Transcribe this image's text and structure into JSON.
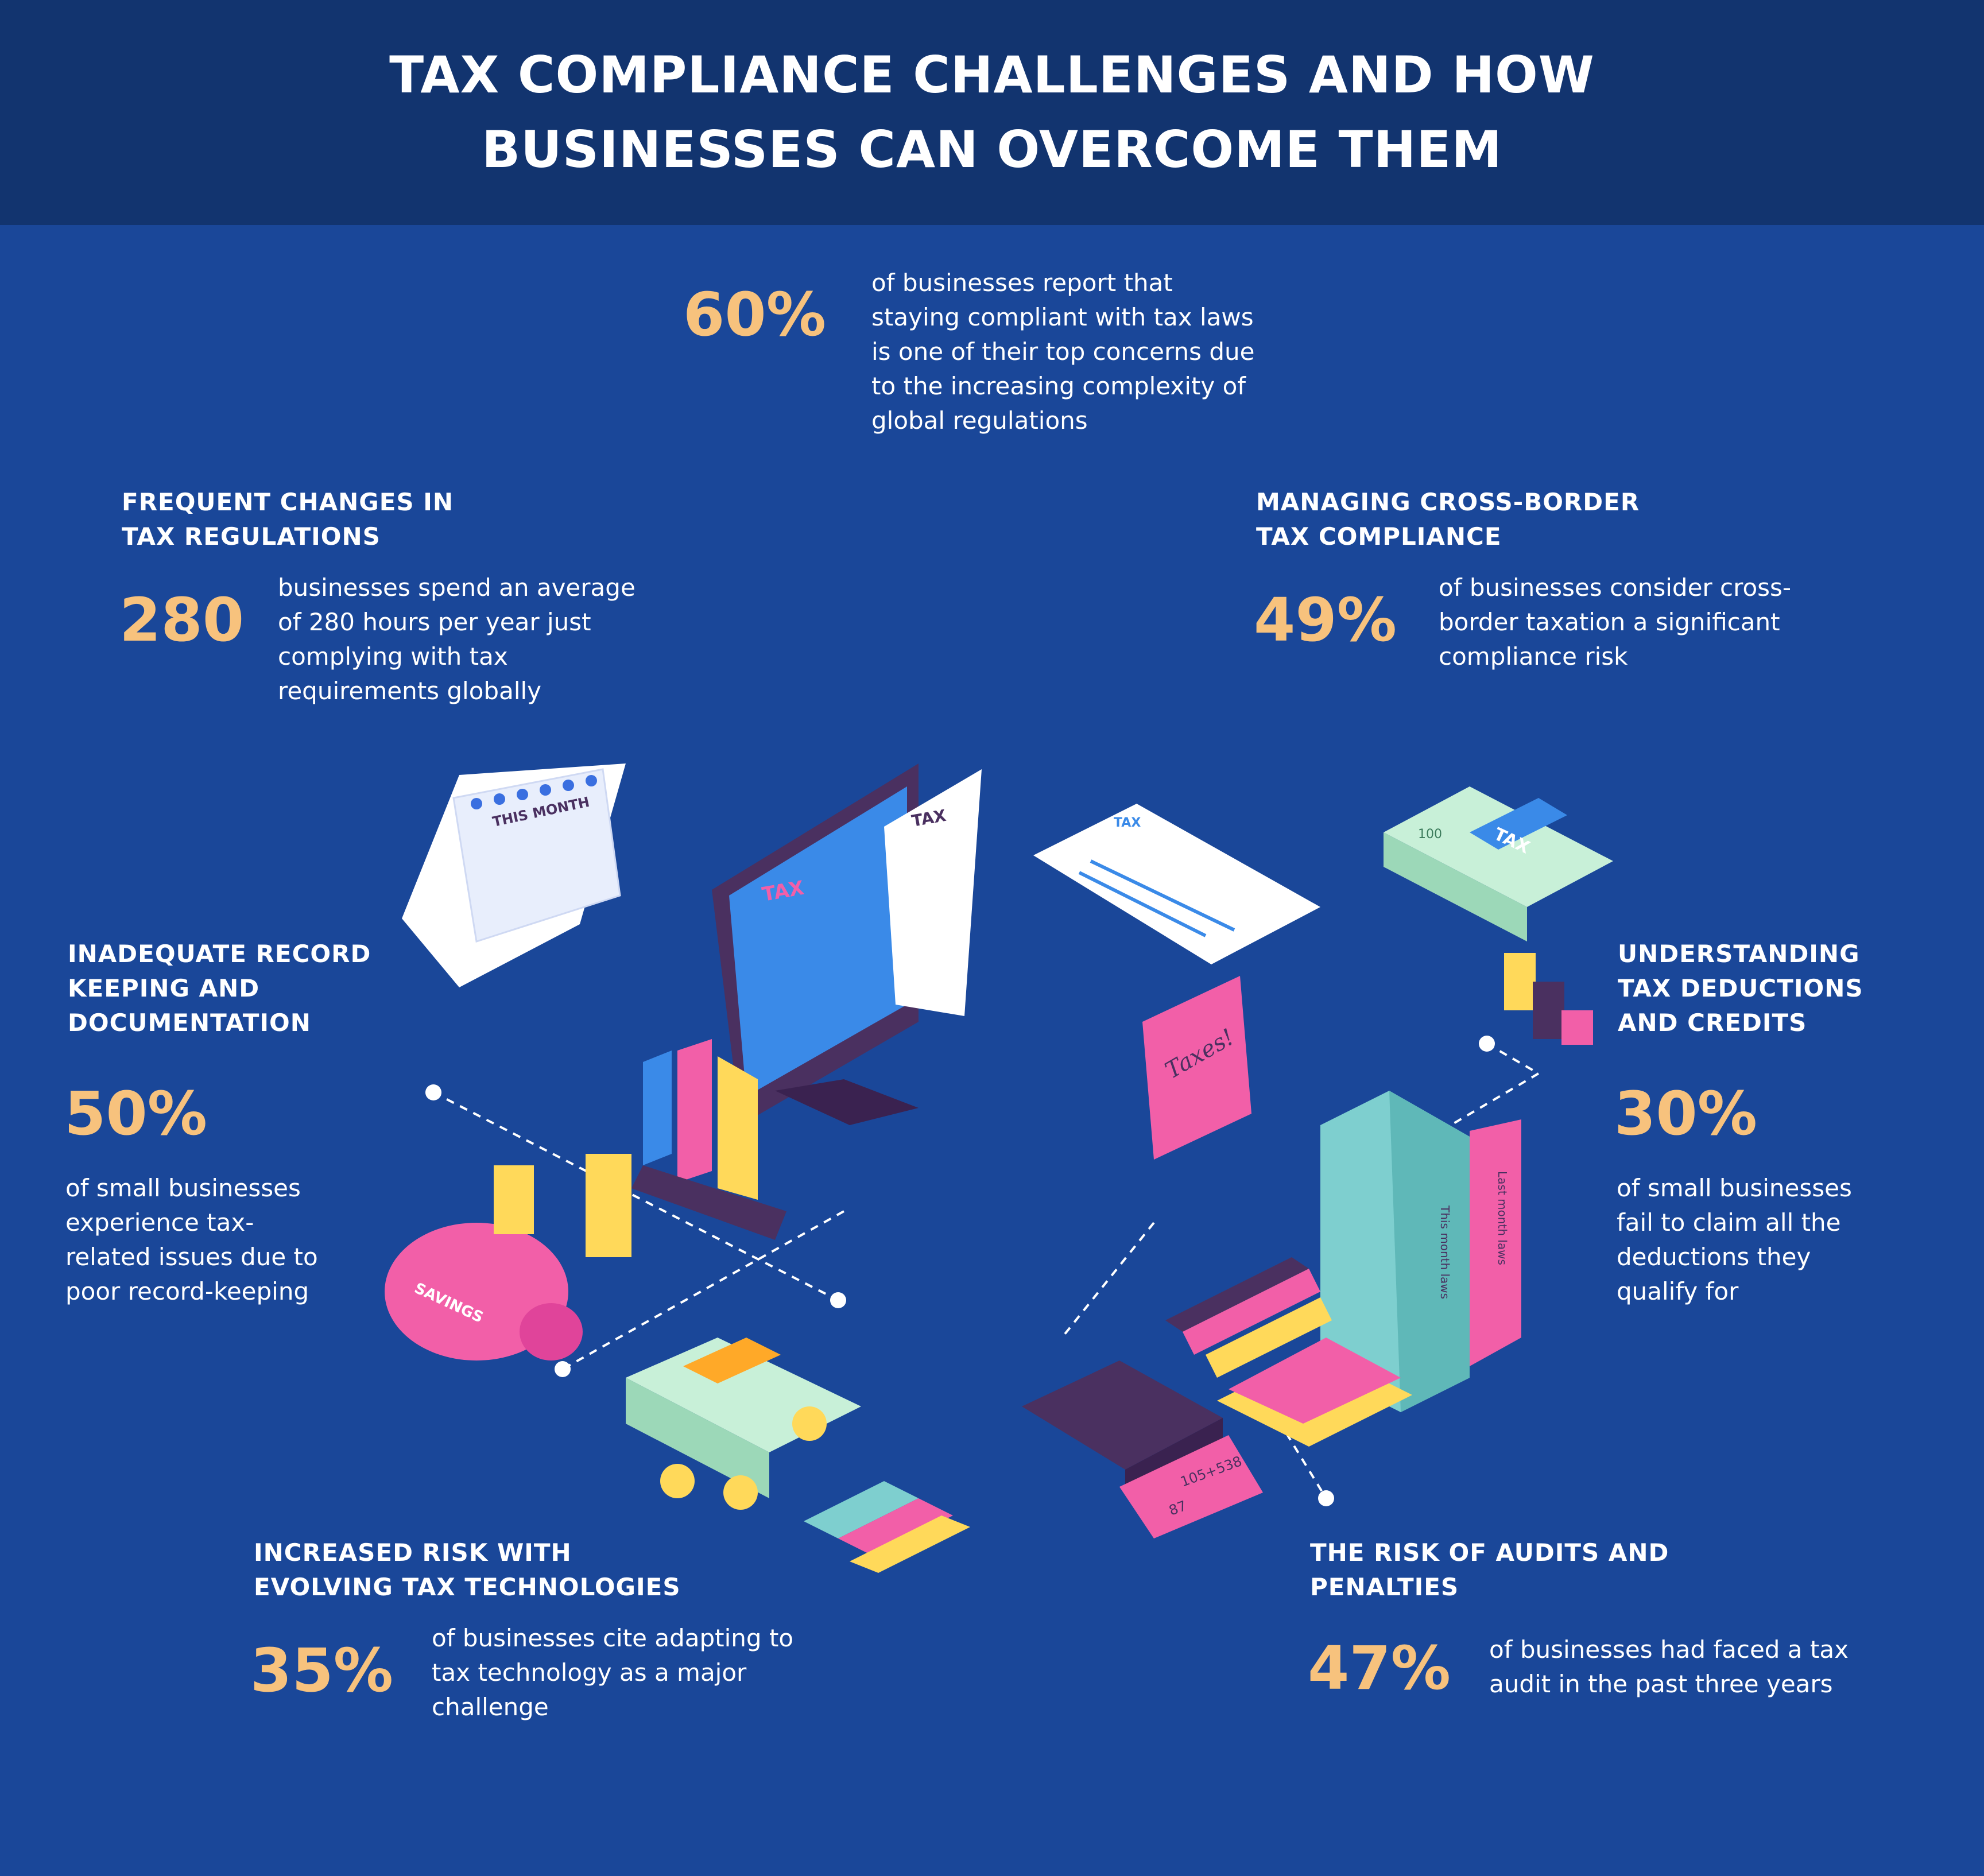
{
  "title_line1": "TAX COMPLIANCE CHALLENGES AND HOW",
  "title_line2": "BUSINESSES CAN OVERCOME THEM",
  "top_stat": {
    "value": "60%",
    "text": [
      "of businesses report that",
      "staying compliant with tax laws",
      "is one of their top concerns due",
      "to the increasing complexity of",
      "global regulations"
    ]
  },
  "frequent_changes": {
    "heading": [
      "FREQUENT CHANGES IN",
      "TAX REGULATIONS"
    ],
    "value": "280",
    "text": [
      "businesses spend an average",
      "of 280 hours per year just",
      "complying with tax",
      "requirements globally"
    ]
  },
  "cross_border": {
    "heading": [
      "MANAGING CROSS-BORDER",
      "TAX COMPLIANCE"
    ],
    "value": "49%",
    "text": [
      "of businesses consider cross-",
      "border taxation a significant",
      "compliance risk"
    ]
  },
  "record_keeping": {
    "heading": [
      "INADEQUATE RECORD",
      "KEEPING AND",
      "DOCUMENTATION"
    ],
    "value": "50%",
    "text": [
      "of small businesses",
      "experience tax-",
      "related issues due to",
      "poor record-keeping"
    ]
  },
  "deductions": {
    "heading": [
      "UNDERSTANDING",
      "TAX DEDUCTIONS",
      "AND CREDITS"
    ],
    "value": "30%",
    "text": [
      "of small businesses",
      "fail to claim all the",
      "deductions they",
      "qualify for"
    ]
  },
  "technologies": {
    "heading": [
      "INCREASED RISK WITH",
      "EVOLVING TAX TECHNOLOGIES"
    ],
    "value": "35%",
    "text": [
      "of businesses cite adapting to",
      "tax technology as a major",
      "challenge"
    ]
  },
  "audits": {
    "heading": [
      "THE RISK OF AUDITS AND",
      "PENALTIES"
    ],
    "value": "47%",
    "text": [
      "of businesses had faced a tax",
      "audit in the past three years"
    ]
  },
  "illustration_labels": {
    "calendar": "THIS MONTH",
    "monitor_tax": "TAX",
    "receipt_tax": "TAX",
    "document_tax": "TAX",
    "money_tax": "TAX",
    "banknote_100": "100",
    "taxes_sign": "Taxes!",
    "savings": "SAVINGS",
    "folder1": "This month laws",
    "folder2": "Last month laws",
    "calc_paper": "105+538",
    "calc_paper2": "87"
  },
  "colors": {
    "background": "#1a4799",
    "header": "#12346f",
    "accent": "#f7c27d",
    "pink": "#f25fa8",
    "teal": "#7ecfcf",
    "yellow": "#ffd95a",
    "purple": "#4a3060"
  }
}
